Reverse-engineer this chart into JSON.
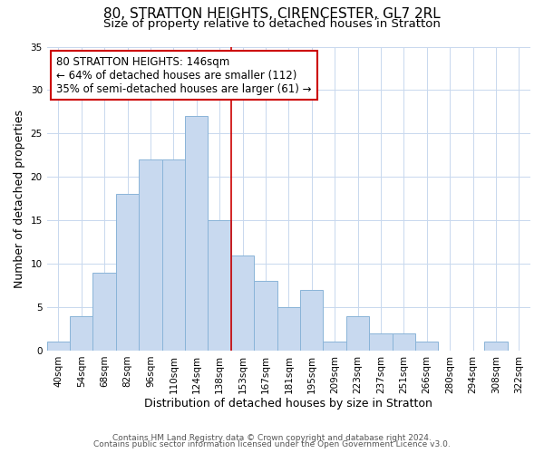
{
  "title": "80, STRATTON HEIGHTS, CIRENCESTER, GL7 2RL",
  "subtitle": "Size of property relative to detached houses in Stratton",
  "xlabel": "Distribution of detached houses by size in Stratton",
  "ylabel": "Number of detached properties",
  "bar_labels": [
    "40sqm",
    "54sqm",
    "68sqm",
    "82sqm",
    "96sqm",
    "110sqm",
    "124sqm",
    "138sqm",
    "153sqm",
    "167sqm",
    "181sqm",
    "195sqm",
    "209sqm",
    "223sqm",
    "237sqm",
    "251sqm",
    "266sqm",
    "280sqm",
    "294sqm",
    "308sqm",
    "322sqm"
  ],
  "bar_values": [
    1,
    4,
    9,
    18,
    22,
    22,
    27,
    15,
    11,
    8,
    5,
    7,
    1,
    4,
    2,
    2,
    1,
    0,
    0,
    1,
    0
  ],
  "bar_color": "#c8d9ef",
  "bar_edgecolor": "#8ab4d8",
  "vline_x": 7.5,
  "vline_color": "#cc0000",
  "annotation_line1": "80 STRATTON HEIGHTS: 146sqm",
  "annotation_line2": "← 64% of detached houses are smaller (112)",
  "annotation_line3": "35% of semi-detached houses are larger (61) →",
  "ylim": [
    0,
    35
  ],
  "yticks": [
    0,
    5,
    10,
    15,
    20,
    25,
    30,
    35
  ],
  "footer_line1": "Contains HM Land Registry data © Crown copyright and database right 2024.",
  "footer_line2": "Contains public sector information licensed under the Open Government Licence v3.0.",
  "background_color": "#ffffff",
  "grid_color": "#c8d8ee",
  "title_fontsize": 11,
  "subtitle_fontsize": 9.5,
  "axis_label_fontsize": 9,
  "tick_fontsize": 7.5,
  "annotation_fontsize": 8.5,
  "footer_fontsize": 6.5
}
